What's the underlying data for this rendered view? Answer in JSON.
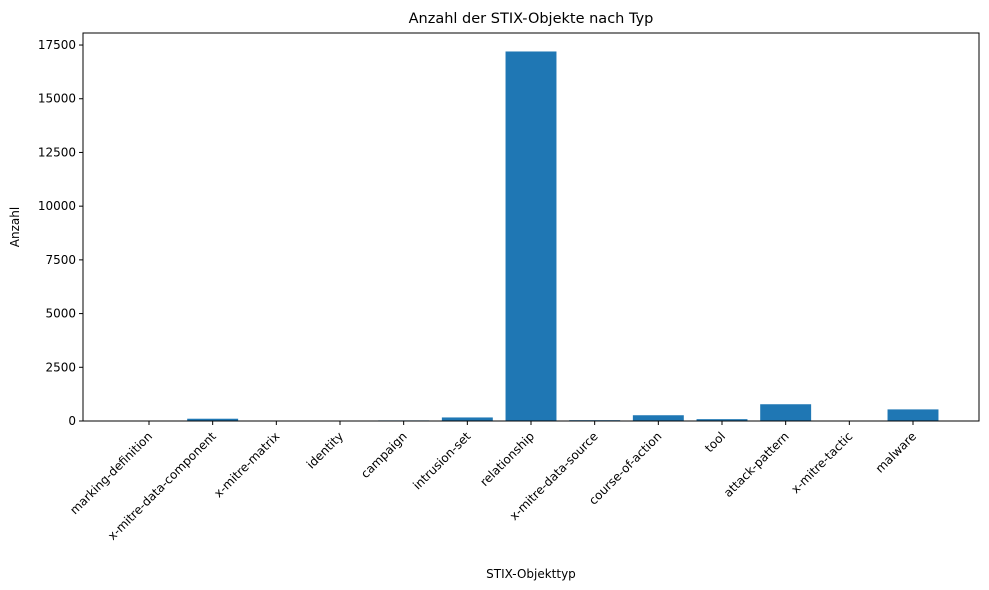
{
  "chart_data": {
    "type": "bar",
    "title": "Anzahl der STIX-Objekte nach Typ",
    "xlabel": "STIX-Objekttyp",
    "ylabel": "Anzahl",
    "categories": [
      "marking-definition",
      "x-mitre-data-component",
      "x-mitre-matrix",
      "identity",
      "campaign",
      "intrusion-set",
      "relationship",
      "x-mitre-data-source",
      "course-of-action",
      "tool",
      "attack-pattern",
      "x-mitre-tactic",
      "malware"
    ],
    "values": [
      1,
      106,
      1,
      1,
      28,
      165,
      17200,
      38,
      268,
      86,
      780,
      14,
      540
    ],
    "ylim": [
      0,
      18060
    ],
    "yticks": [
      0,
      2500,
      5000,
      7500,
      10000,
      12500,
      15000,
      17500
    ],
    "bar_color": "#1f77b4",
    "grid": false,
    "legend": "none"
  }
}
